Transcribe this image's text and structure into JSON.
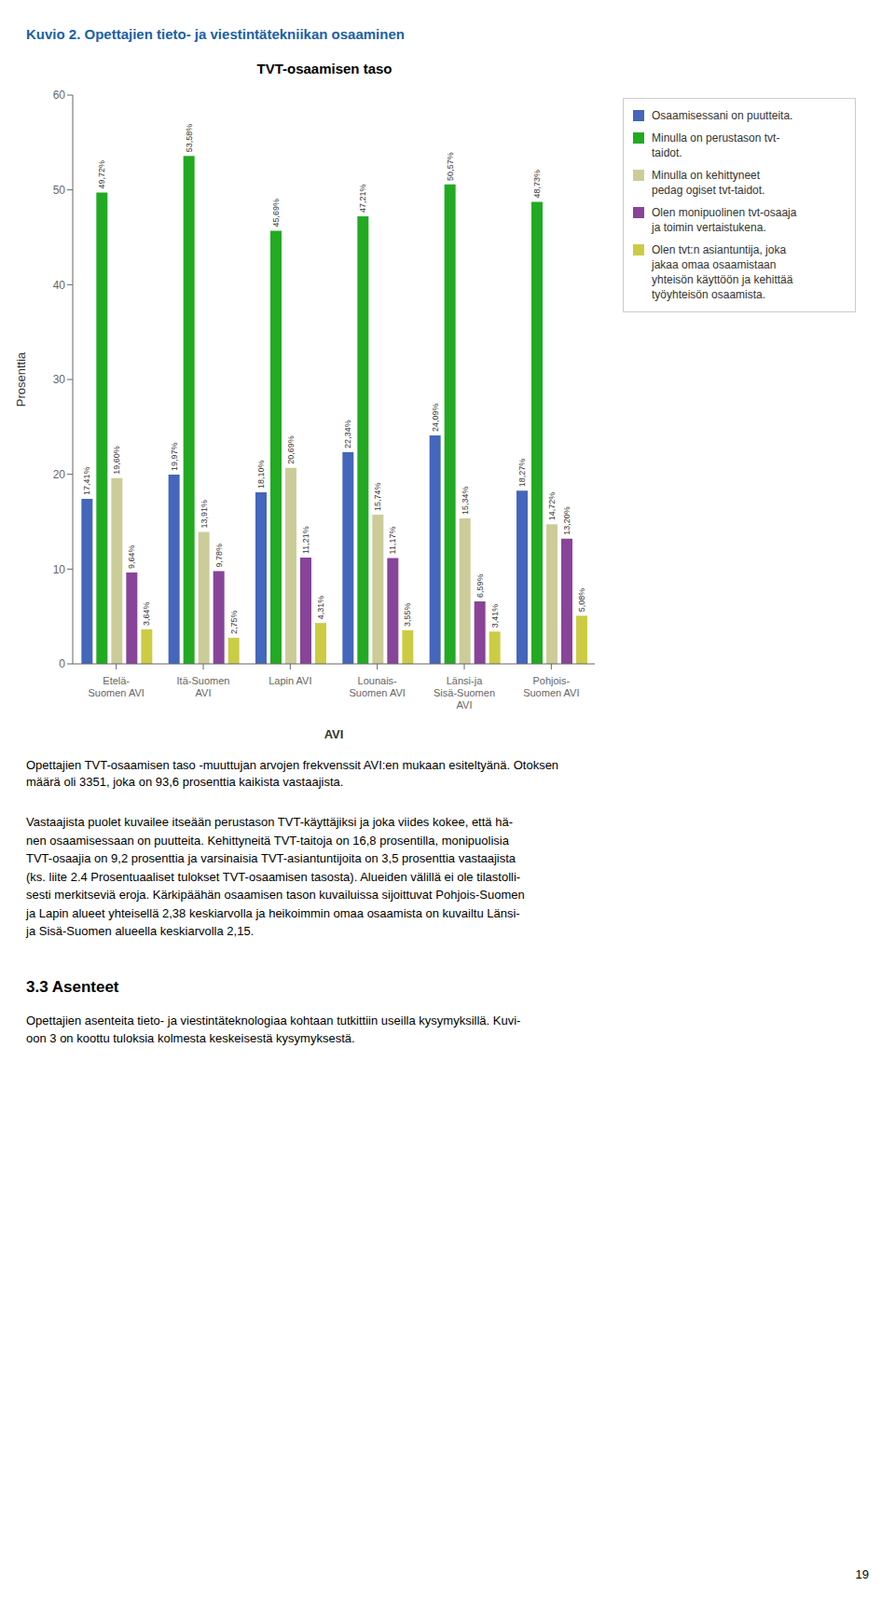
{
  "chart_data": {
    "type": "bar",
    "title": "TVT-osaamisen taso",
    "xlabel": "AVI",
    "ylabel": "Prosenttia",
    "categories": [
      "Etelä-\nSuomen AVI",
      "Itä-Suomen\nAVI",
      "Lapin AVI",
      "Lounais-\nSuomen AVI",
      "Länsi-ja\nSisä-Suomen\nAVI",
      "Pohjois-\nSuomen AVI"
    ],
    "series": [
      {
        "name": "Osaamisessani on puutteita.",
        "color": "#4466bb",
        "values": [
          17.41,
          19.97,
          18.1,
          22.34,
          24.09,
          18.27
        ],
        "value_labels": [
          "17,41%",
          "19,97%",
          "18,10%",
          "22,34%",
          "24,09%",
          "18,27%"
        ]
      },
      {
        "name": "Minulla on perustason tvt-\ntaidot.",
        "color": "#22aa22",
        "values": [
          49.72,
          53.58,
          45.69,
          47.21,
          50.57,
          48.73
        ],
        "value_labels": [
          "49,72%",
          "53,58%",
          "45,69%",
          "47,21%",
          "50,57%",
          "48,73%"
        ]
      },
      {
        "name": "Minulla on kehittyneet\npedag ogiset tvt-taidot.",
        "color": "#cccc99",
        "values": [
          19.6,
          13.91,
          20.69,
          15.74,
          15.34,
          14.72
        ],
        "value_labels": [
          "19,60%",
          "13,91%",
          "20,69%",
          "15,74%",
          "15,34%",
          "14,72%"
        ]
      },
      {
        "name": "Olen monipuolinen tvt-osaaja\nja toimin vertaistukena.",
        "color": "#884499",
        "values": [
          9.64,
          9.78,
          11.21,
          11.17,
          6.59,
          13.2
        ],
        "value_labels": [
          "9,64%",
          "9,78%",
          "11,21%",
          "11,17%",
          "6,59%",
          "13,20%"
        ]
      },
      {
        "name": "Olen tvt:n asiantuntija, joka\njakaa omaa osaamistaan\nyhteisön käyttöön ja kehittää\ntyöyhteisön osaamista.",
        "color": "#cccc44",
        "values": [
          3.64,
          2.75,
          4.31,
          3.55,
          3.41,
          5.08
        ],
        "value_labels": [
          "3,64%",
          "2,75%",
          "4,31%",
          "3,55%",
          "3,41%",
          "5,08%"
        ]
      }
    ],
    "ylim": [
      0,
      60
    ],
    "yticks": [
      0,
      10,
      20,
      30,
      40,
      50,
      60
    ],
    "grid": false,
    "legend": "right",
    "data_labels": true
  },
  "page_title": "Kuvio 2. Opettajien tieto- ja viestintätekniikan osaaminen",
  "caption": "Opettajien TVT-osaamisen taso -muuttujan arvojen frekvenssit AVI:en mukaan esiteltyänä. Otoksen\nmäärä oli 3351, joka on 93,6 prosenttia kaikista vastaajista.",
  "body_text": "Vastaajista puolet kuvailee itseään perustason TVT-käyttäjiksi ja joka viides kokee, että hä-\nnen osaamisessaan on puutteita. Kehittyneitä TVT-taitoja on 16,8 prosentilla, monipuolisia\nTVT-osaajia on 9,2 prosenttia ja varsinaisia TVT-asiantuntijoita on 3,5 prosenttia vastaajista\n(ks. liite 2.4 Prosentuaaliset tulokset TVT-osaamisen tasosta). Alueiden välillä ei ole tilastolli-\nsesti merkitseviä eroja. Kärkipäähän osaamisen tason kuvailuissa sijoittuvat Pohjois-Suomen\nja Lapin alueet yhteisellä 2,38 keskiarvolla ja heikoimmin omaa osaamista on kuvailtu Länsi-\nja Sisä-Suomen alueella keskiarvolla 2,15.",
  "section_title": "3.3 Asenteet",
  "section_text": "Opettajien asenteita tieto- ja viestintäteknologiaa kohtaan tutkittiin useilla kysymyksillä. Kuvi-\noon 3 on koottu tuloksia kolmesta keskeisestä kysymyksestä.",
  "page_number": "19"
}
